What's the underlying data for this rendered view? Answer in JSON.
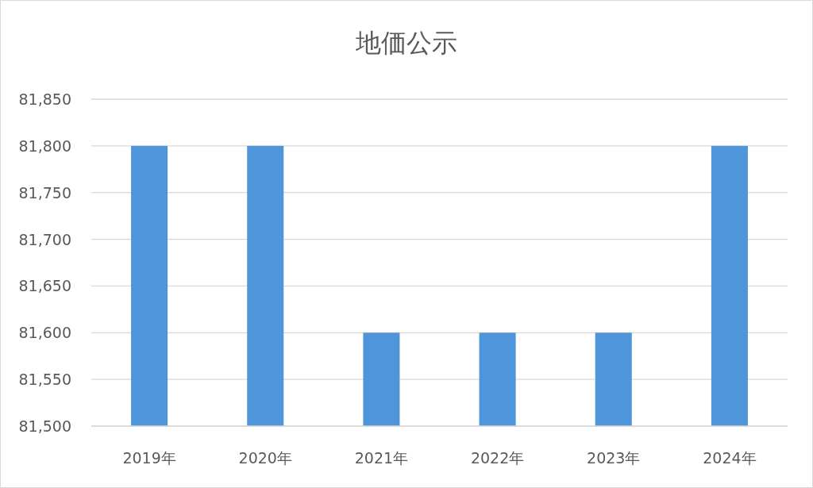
{
  "chart_data": {
    "type": "bar",
    "title": "地価公示",
    "categories": [
      "2019年",
      "2020年",
      "2021年",
      "2022年",
      "2023年",
      "2024年"
    ],
    "values": [
      81800,
      81800,
      81600,
      81600,
      81600,
      81800
    ],
    "color": "#4e95d9",
    "ylim": [
      81500,
      81850
    ],
    "yticks": [
      {
        "value": 81500,
        "label": "81,500"
      },
      {
        "value": 81550,
        "label": "81,550"
      },
      {
        "value": 81600,
        "label": "81,600"
      },
      {
        "value": 81650,
        "label": "81,650"
      },
      {
        "value": 81700,
        "label": "81,700"
      },
      {
        "value": 81750,
        "label": "81,750"
      },
      {
        "value": 81800,
        "label": "81,800"
      },
      {
        "value": 81850,
        "label": "81,850"
      }
    ],
    "grid": "y"
  }
}
